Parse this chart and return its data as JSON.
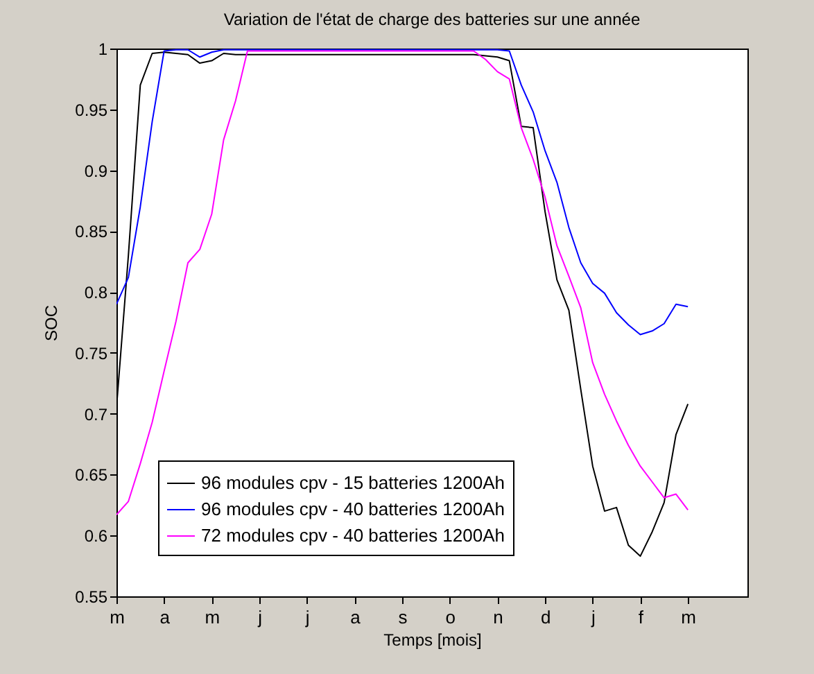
{
  "chart_data": {
    "type": "line",
    "title": "Variation de l'état de charge des batteries sur une année",
    "xlabel": "Temps [mois]",
    "ylabel": "SOC",
    "categories": [
      "m",
      null,
      null,
      null,
      "a",
      null,
      null,
      null,
      "m",
      null,
      null,
      null,
      "j",
      null,
      null,
      null,
      "j",
      null,
      null,
      null,
      "a",
      null,
      null,
      null,
      "s",
      null,
      null,
      null,
      "o",
      null,
      null,
      null,
      "n",
      null,
      null,
      null,
      "d",
      null,
      null,
      null,
      "j",
      null,
      null,
      null,
      "f",
      null,
      null,
      null,
      "m",
      null,
      null,
      null,
      null,
      null
    ],
    "ylim": [
      0.55,
      1
    ],
    "yticks": [
      0.55,
      0.6,
      0.65,
      0.7,
      0.75,
      0.8,
      0.85,
      0.9,
      0.95,
      1
    ],
    "grid": false,
    "legend": "bottom left",
    "line_style": "solid",
    "series": [
      {
        "name": "96 modules cpv - 15 batteries 1200Ah",
        "color": "#000000",
        "values": [
          0.705,
          0.83,
          0.97,
          0.996,
          0.997,
          0.996,
          0.995,
          0.988,
          0.99,
          0.996,
          0.995,
          0.995,
          0.995,
          0.995,
          0.995,
          0.995,
          0.995,
          0.995,
          0.995,
          0.995,
          0.995,
          0.995,
          0.995,
          0.995,
          0.995,
          0.995,
          0.995,
          0.995,
          0.995,
          0.995,
          0.995,
          0.994,
          0.993,
          0.99,
          0.936,
          0.935,
          0.866,
          0.81,
          0.785,
          0.72,
          0.657,
          0.62,
          0.623,
          0.592,
          0.583,
          0.603,
          0.627,
          0.683,
          0.708,
          null,
          null,
          null,
          null,
          null
        ]
      },
      {
        "name": "96 modules cpv - 40 batteries 1200Ah",
        "color": "#0000ff",
        "values": [
          0.79,
          0.812,
          0.87,
          0.94,
          0.998,
          0.999,
          0.999,
          0.993,
          0.997,
          0.999,
          0.999,
          0.999,
          0.999,
          0.999,
          0.999,
          0.999,
          0.999,
          0.999,
          0.999,
          0.999,
          0.999,
          0.999,
          0.999,
          0.999,
          0.999,
          0.999,
          0.999,
          0.999,
          0.999,
          0.999,
          0.999,
          0.999,
          0.999,
          0.998,
          0.97,
          0.948,
          0.916,
          0.89,
          0.853,
          0.824,
          0.807,
          0.799,
          0.783,
          0.773,
          0.765,
          0.768,
          0.774,
          0.79,
          0.788,
          null,
          null,
          null,
          null,
          null
        ]
      },
      {
        "name": "72 modules cpv - 40 batteries 1200Ah",
        "color": "#ff00ff",
        "values": [
          0.617,
          0.628,
          0.659,
          0.693,
          0.735,
          0.776,
          0.824,
          0.835,
          0.864,
          0.925,
          0.957,
          0.998,
          0.998,
          0.998,
          0.998,
          0.998,
          0.998,
          0.998,
          0.998,
          0.998,
          0.998,
          0.998,
          0.998,
          0.998,
          0.998,
          0.998,
          0.998,
          0.998,
          0.998,
          0.998,
          0.998,
          0.991,
          0.981,
          0.975,
          0.935,
          0.909,
          0.878,
          0.838,
          0.813,
          0.787,
          0.742,
          0.716,
          0.694,
          0.674,
          0.657,
          0.644,
          0.631,
          0.634,
          0.621,
          null,
          null,
          null,
          null,
          null
        ]
      }
    ]
  }
}
